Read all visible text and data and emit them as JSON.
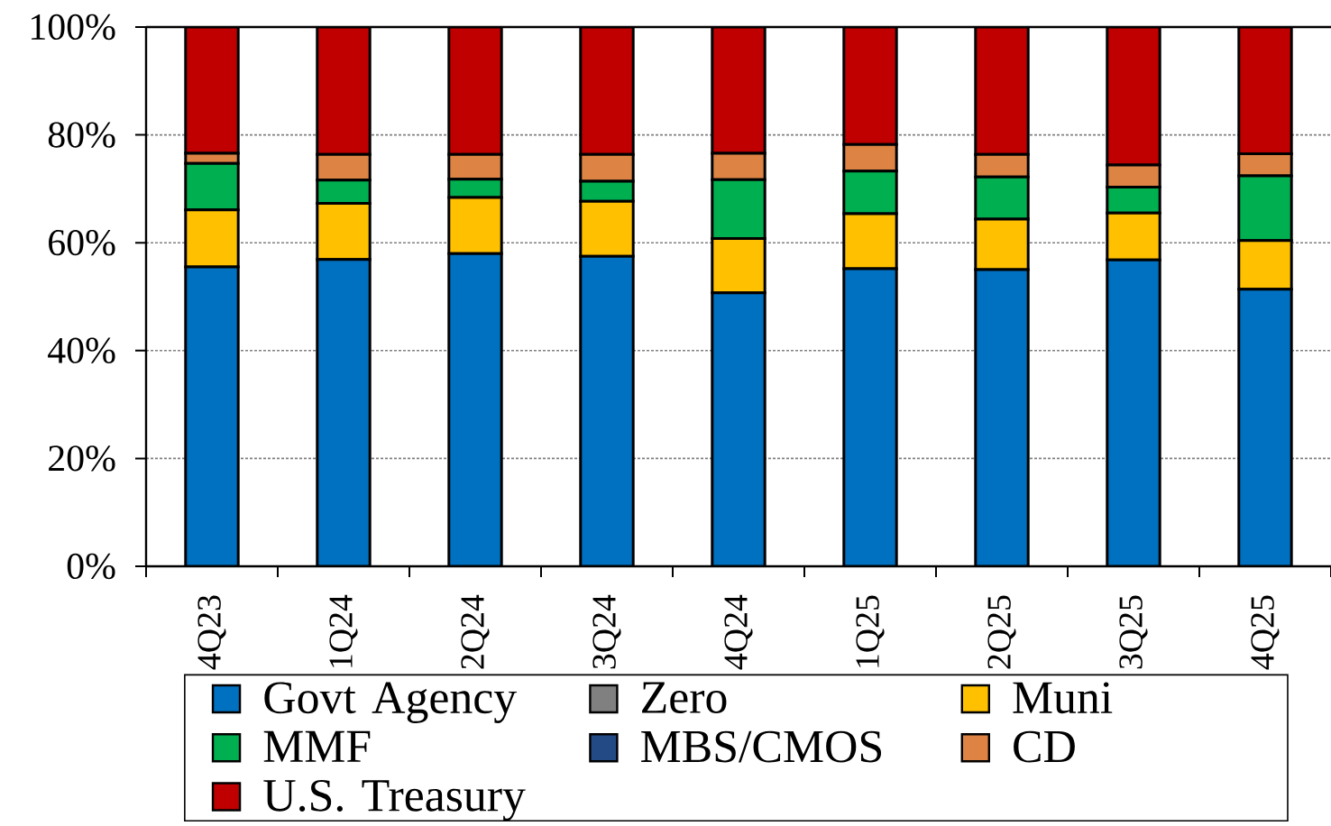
{
  "chart_data": {
    "type": "bar",
    "stacked": true,
    "categories": [
      "4Q23",
      "1Q24",
      "2Q24",
      "3Q24",
      "4Q24",
      "1Q25",
      "2Q25",
      "3Q25",
      "4Q25"
    ],
    "series": [
      {
        "name": "Govt Agency",
        "color": "#0070c0",
        "values": [
          55.5,
          56.9,
          58.0,
          57.5,
          50.7,
          55.2,
          55.0,
          56.8,
          51.4
        ]
      },
      {
        "name": "Zero",
        "color": "#808080",
        "values": [
          0,
          0,
          0,
          0,
          0,
          0,
          0,
          0,
          0
        ]
      },
      {
        "name": "Muni",
        "color": "#ffc000",
        "values": [
          10.6,
          10.4,
          10.4,
          10.2,
          10.1,
          10.2,
          9.4,
          8.7,
          9.0
        ]
      },
      {
        "name": "MMF",
        "color": "#00b050",
        "values": [
          8.6,
          4.3,
          3.4,
          3.7,
          10.9,
          7.9,
          7.8,
          4.8,
          12.0
        ]
      },
      {
        "name": "MBS/CMOS",
        "color": "#244a86",
        "values": [
          0,
          0,
          0,
          0,
          0,
          0,
          0,
          0,
          0
        ]
      },
      {
        "name": "CD",
        "color": "#dd8444",
        "values": [
          1.9,
          4.8,
          4.6,
          5.0,
          4.9,
          4.9,
          4.2,
          4.1,
          4.1
        ]
      },
      {
        "name": "U.S. Treasury",
        "color": "#c00000",
        "values": [
          23.4,
          23.6,
          23.6,
          23.6,
          23.4,
          21.8,
          23.6,
          25.6,
          23.5
        ]
      }
    ],
    "ylim": [
      0,
      100
    ],
    "yticks": [
      {
        "value": 0,
        "label": "0%"
      },
      {
        "value": 20,
        "label": "20%"
      },
      {
        "value": 40,
        "label": "40%"
      },
      {
        "value": 60,
        "label": "60%"
      },
      {
        "value": 80,
        "label": "80%"
      },
      {
        "value": 100,
        "label": "100%"
      }
    ],
    "grid": "y",
    "legend": "bottom"
  }
}
